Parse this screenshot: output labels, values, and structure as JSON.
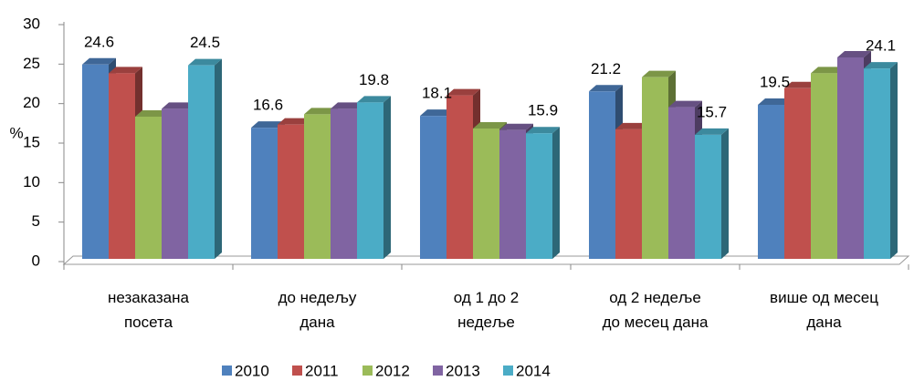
{
  "chart_data": {
    "type": "bar3d",
    "y_label": "%",
    "categories": [
      "незаказана\nпосета",
      "до недељу\nдана",
      "од 1 до 2\nнедеље",
      "од 2 недеље\nдо месец дана",
      "више од месец\nдана"
    ],
    "series": [
      {
        "name": "2010",
        "color": "#4f81bd",
        "values": [
          24.6,
          16.6,
          18.1,
          21.2,
          19.5
        ],
        "labels": true
      },
      {
        "name": "2011",
        "color": "#c0504d",
        "values": [
          23.5,
          17,
          20.7,
          16.4,
          21.6
        ],
        "labels": false
      },
      {
        "name": "2012",
        "color": "#9bbb59",
        "values": [
          18,
          18.3,
          16.5,
          23,
          23.5
        ],
        "labels": false
      },
      {
        "name": "2013",
        "color": "#8064a2",
        "values": [
          19,
          19,
          16.3,
          19.2,
          25.5
        ],
        "labels": false
      },
      {
        "name": "2014",
        "color": "#4bacc6",
        "values": [
          24.5,
          19.8,
          15.9,
          15.7,
          24.1
        ],
        "labels": true
      }
    ],
    "ylim": [
      0,
      30
    ],
    "yticks": [
      0,
      5,
      10,
      15,
      20,
      25,
      30
    ],
    "legend": "bottom"
  }
}
